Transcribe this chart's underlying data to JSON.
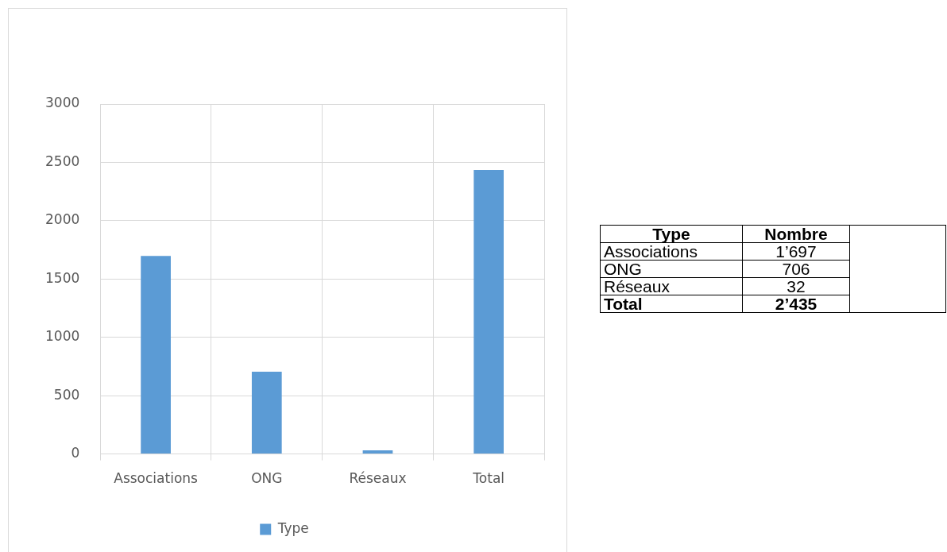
{
  "chart_data": {
    "type": "bar",
    "categories": [
      "Associations",
      "ONG",
      "Réseaux",
      "Total"
    ],
    "series": [
      {
        "name": "Type",
        "color": "#5b9bd5",
        "values": [
          1697,
          706,
          32,
          2435
        ]
      }
    ],
    "ylim": [
      0,
      3000
    ],
    "yticks": [
      0,
      500,
      1000,
      1500,
      2000,
      2500,
      3000
    ],
    "grid": true,
    "legend": "bottom",
    "annotations": [
      "Type",
      "Nombre",
      "Associations",
      "1’697",
      "ONG",
      "706",
      "Réseaux",
      "32",
      "Total",
      "2’435"
    ]
  }
}
